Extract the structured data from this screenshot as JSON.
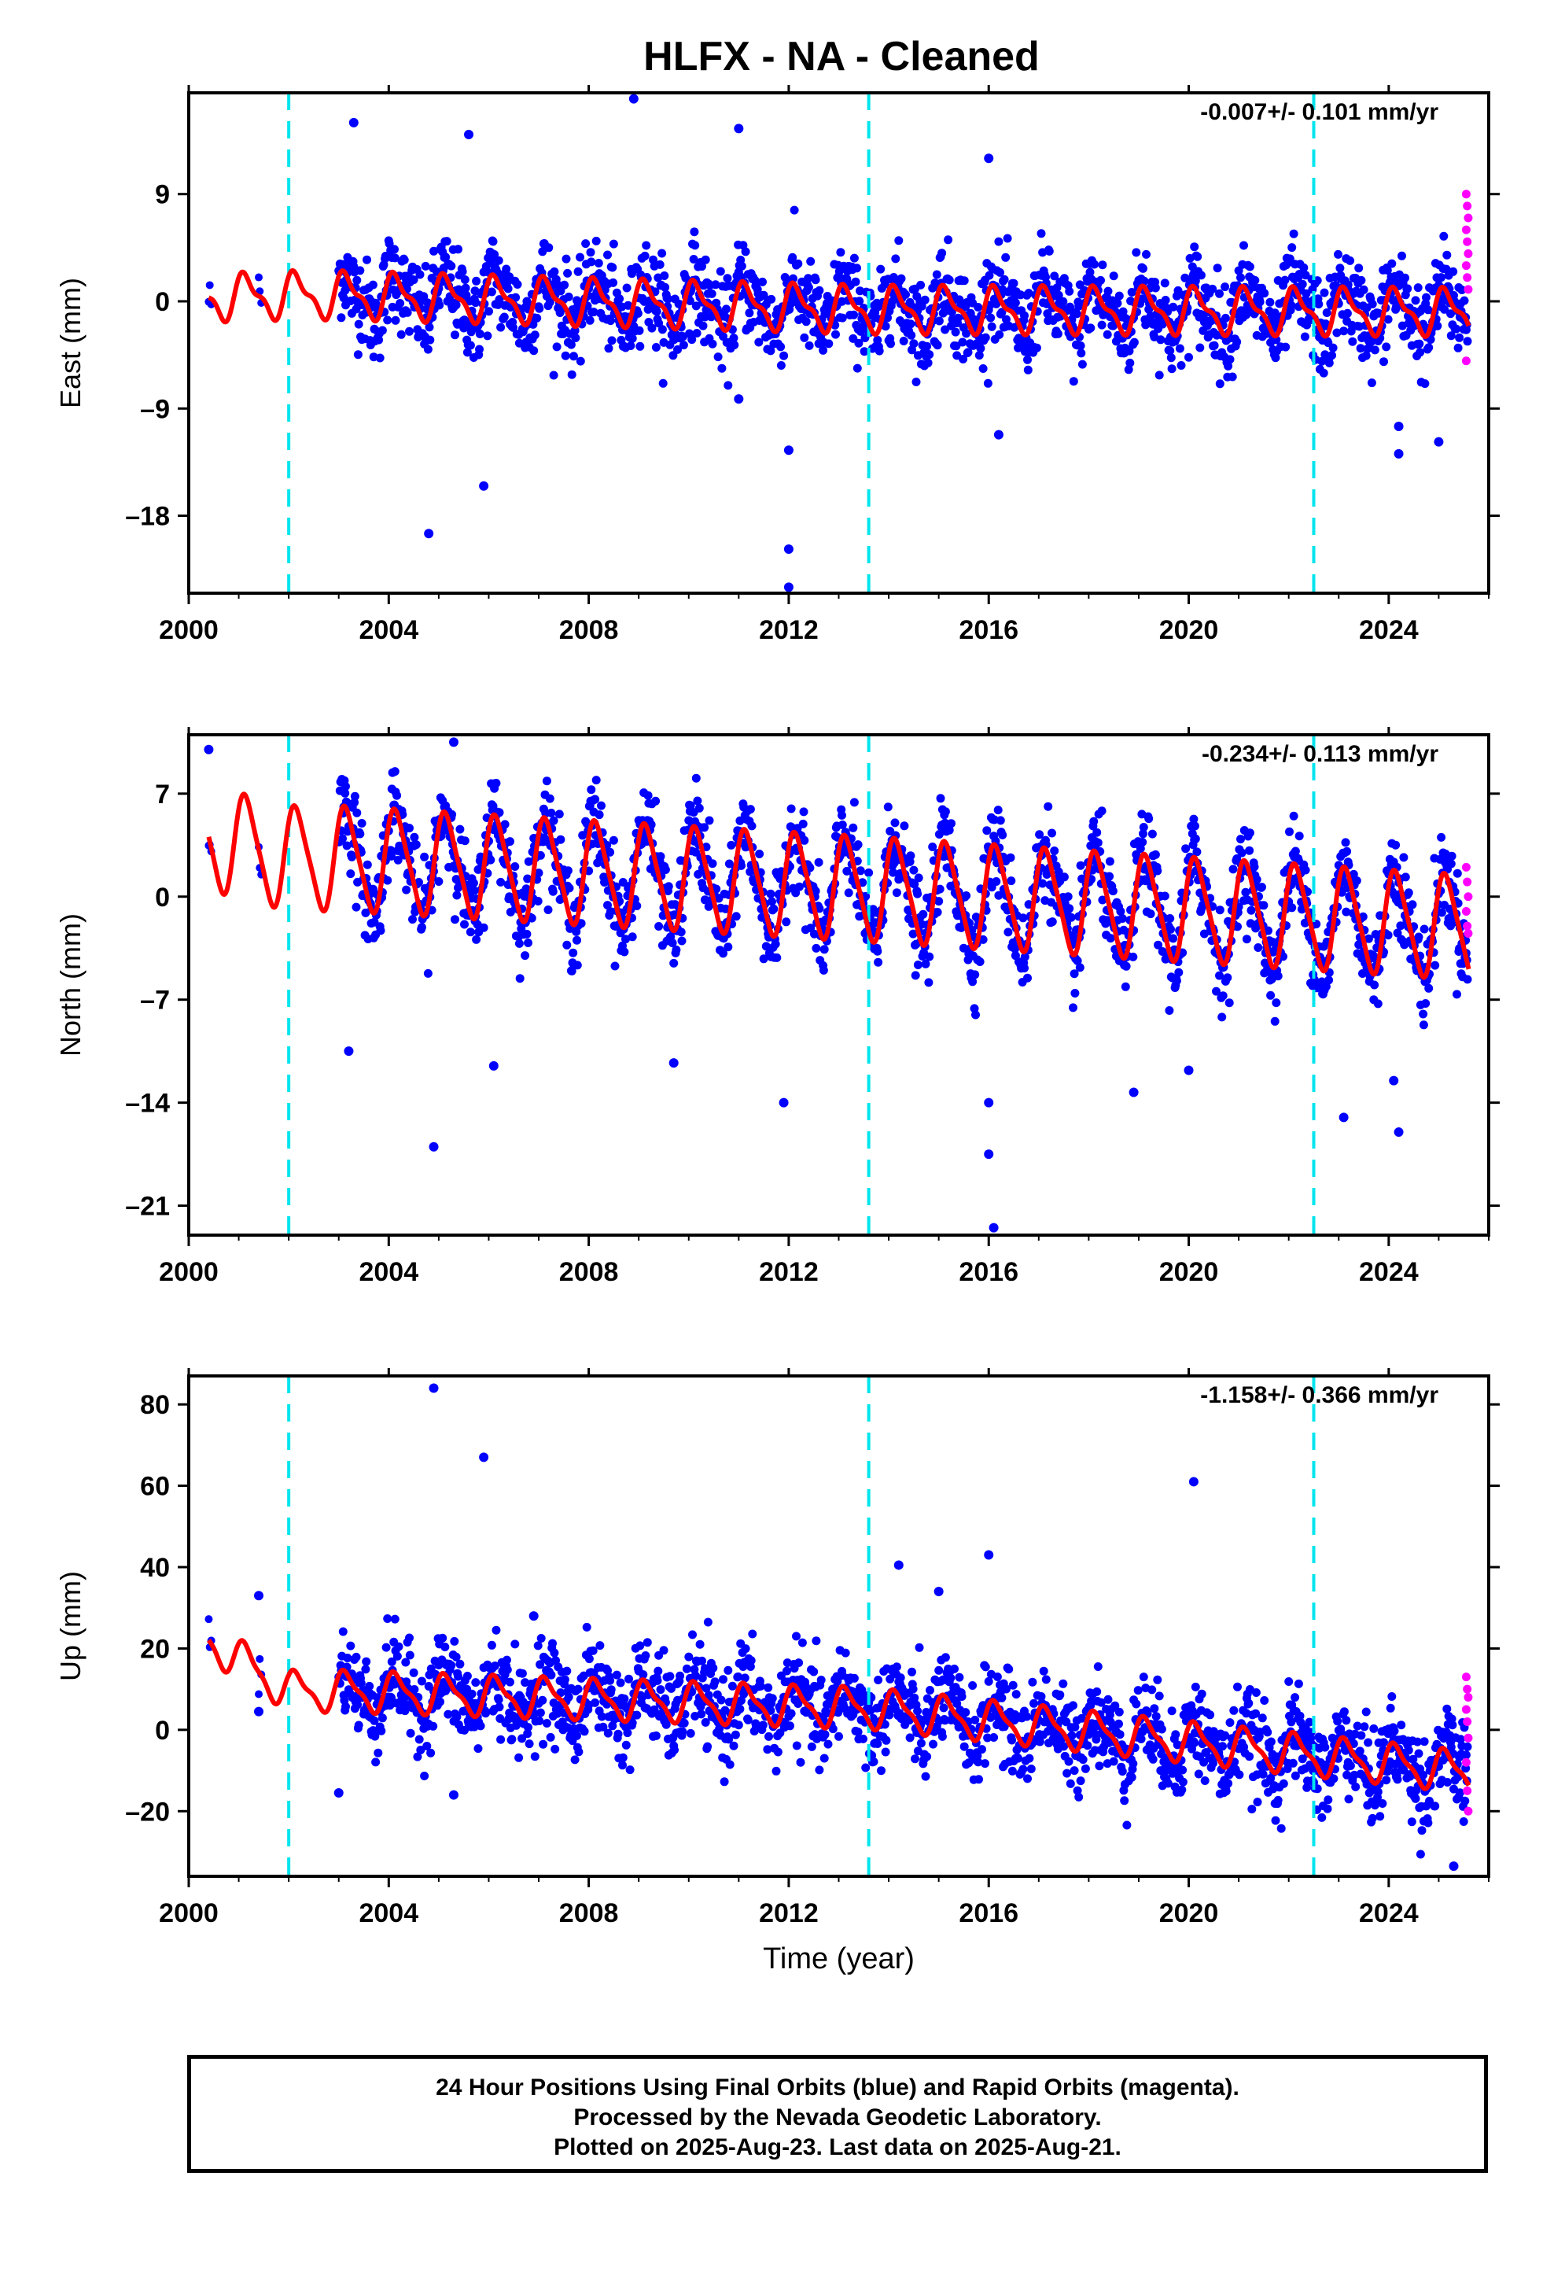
{
  "title": "HLFX  - NA - Cleaned",
  "colors": {
    "final": "#0000ff",
    "rapid": "#ff00ff",
    "model": "#ff0000",
    "breaks": "#00e5ee"
  },
  "chart_data": [
    {
      "type": "scatter",
      "panel": "east",
      "ylabel": "East (mm)",
      "xlim": [
        2000,
        2026
      ],
      "ylim": [
        -24.5,
        17.5
      ],
      "xticks": [
        "2000",
        "2004",
        "2008",
        "2012",
        "2016",
        "2020",
        "2024"
      ],
      "yticks": [
        "9",
        "0",
        "-9",
        "-18"
      ],
      "rate": "-0.007+/- 0.101 mm/yr",
      "breaks": [
        2002.0,
        2013.6,
        2022.5
      ],
      "model": {
        "offsets": [
          [
            2000.4,
            0.3
          ],
          [
            2002.0,
            0.5
          ],
          [
            2003.0,
            0.5
          ],
          [
            2013.6,
            -0.7
          ],
          [
            2025.6,
            -0.9
          ]
        ],
        "slope": -0.007,
        "amp_annual": 1.7,
        "amp_semi": 0.7
      },
      "outliers": [
        [
          2003.3,
          15.0
        ],
        [
          2004.8,
          -19.5
        ],
        [
          2005.6,
          14.0
        ],
        [
          2005.9,
          -15.5
        ],
        [
          2008.9,
          17.0
        ],
        [
          2011.0,
          14.5
        ],
        [
          2011.0,
          -8.2
        ],
        [
          2012.0,
          -12.5
        ],
        [
          2012.0,
          -20.8
        ],
        [
          2012.0,
          -24.0
        ],
        [
          2016.0,
          12.0
        ],
        [
          2016.2,
          -11.2
        ],
        [
          2024.2,
          -12.8
        ],
        [
          2024.2,
          -10.5
        ],
        [
          2025.0,
          -11.8
        ]
      ],
      "rapid": [
        9.0,
        8.0,
        7.0,
        6.0,
        5.0,
        4.0,
        3.0,
        2.0,
        1.0,
        -5.0
      ]
    },
    {
      "type": "scatter",
      "panel": "north",
      "ylabel": "North (mm)",
      "xlim": [
        2000,
        2026
      ],
      "ylim": [
        -23.0,
        11.0
      ],
      "xticks": [
        "2000",
        "2004",
        "2008",
        "2012",
        "2016",
        "2020",
        "2024"
      ],
      "yticks": [
        "7",
        "0",
        "-7",
        "-14",
        "-21"
      ],
      "rate": "-0.234+/- 0.113 mm/yr",
      "breaks": [
        2002.0,
        2013.6,
        2022.5
      ],
      "model": {
        "offsets": [
          [
            2000.4,
            4.0
          ],
          [
            2002.0,
            2.6
          ],
          [
            2003.0,
            2.6
          ],
          [
            2013.6,
            0.5
          ],
          [
            2025.6,
            -2.1
          ]
        ],
        "slope": -0.234,
        "amp_annual": 3.4,
        "amp_semi": 0.6
      },
      "outliers": [
        [
          2000.4,
          10.0
        ],
        [
          2003.2,
          -10.5
        ],
        [
          2004.9,
          -17.0
        ],
        [
          2005.3,
          10.5
        ],
        [
          2006.1,
          -11.5
        ],
        [
          2009.7,
          -11.3
        ],
        [
          2011.9,
          -14.0
        ],
        [
          2016.0,
          -17.5
        ],
        [
          2016.1,
          -22.5
        ],
        [
          2016.0,
          -14.0
        ],
        [
          2018.9,
          -13.3
        ],
        [
          2020.0,
          -11.8
        ],
        [
          2023.1,
          -15.0
        ],
        [
          2024.2,
          -16.0
        ],
        [
          2024.1,
          -12.5
        ]
      ],
      "rapid": [
        2.0,
        1.0,
        0.0,
        -1.0,
        -2.0,
        -2.5
      ]
    },
    {
      "type": "scatter",
      "panel": "up",
      "ylabel": "Up (mm)",
      "xlabel": "Time (year)",
      "xlim": [
        2000,
        2026
      ],
      "ylim": [
        -36.0,
        87.0
      ],
      "xticks": [
        "2000",
        "2004",
        "2008",
        "2012",
        "2016",
        "2020",
        "2024"
      ],
      "yticks": [
        "80",
        "60",
        "40",
        "20",
        "0",
        "-20"
      ],
      "rate": "-1.158+/- 0.366 mm/yr",
      "breaks": [
        2002.0,
        2013.6,
        2022.5
      ],
      "model": {
        "offsets": [
          [
            2000.4,
            22.0
          ],
          [
            2002.0,
            9.5
          ],
          [
            2003.0,
            9.5
          ],
          [
            2013.6,
            5.3
          ],
          [
            2025.6,
            -10.4
          ]
        ],
        "slope": -1.158,
        "amp_annual": 4.5,
        "amp_semi": 1.5
      },
      "outliers": [
        [
          2004.9,
          84.0
        ],
        [
          2005.9,
          67.0
        ],
        [
          2014.2,
          40.5
        ],
        [
          2015.0,
          34.0
        ],
        [
          2016.0,
          43.0
        ],
        [
          2020.1,
          61.0
        ],
        [
          2001.4,
          33.0
        ],
        [
          2001.4,
          4.5
        ],
        [
          2006.9,
          28.0
        ],
        [
          2003.0,
          -15.5
        ],
        [
          2025.3,
          -33.5
        ],
        [
          2005.3,
          -16.0
        ]
      ],
      "rapid": [
        13.0,
        10.0,
        8.0,
        5.0,
        2.0,
        -2.0,
        -8.0,
        -15.0,
        -20.0
      ]
    }
  ],
  "footer": {
    "line1": "24 Hour Positions Using Final Orbits (blue) and Rapid Orbits (magenta).",
    "line2": "Processed by the Nevada Geodetic Laboratory.",
    "line3": "Plotted on 2025-Aug-23. Last data on 2025-Aug-21."
  }
}
